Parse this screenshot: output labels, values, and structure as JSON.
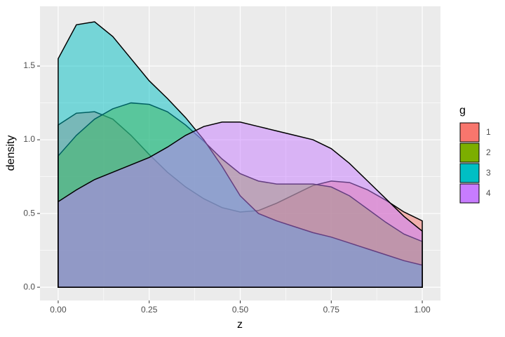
{
  "chart_data": {
    "type": "area",
    "x_label": "z",
    "y_label": "density",
    "legend_title": "g",
    "legend": "right",
    "grid": true,
    "opacity": 0.5,
    "x": [
      0,
      0.05,
      0.1,
      0.15,
      0.2,
      0.25,
      0.3,
      0.35,
      0.4,
      0.45,
      0.5,
      0.55,
      0.6,
      0.65,
      0.7,
      0.75,
      0.8,
      0.85,
      0.9,
      0.95,
      1.0
    ],
    "series": [
      {
        "name": "1",
        "color": "#F8766D",
        "values": [
          1.1,
          1.18,
          1.19,
          1.14,
          1.03,
          0.9,
          0.78,
          0.68,
          0.6,
          0.54,
          0.51,
          0.52,
          0.57,
          0.63,
          0.69,
          0.72,
          0.71,
          0.66,
          0.59,
          0.51,
          0.45
        ]
      },
      {
        "name": "2",
        "color": "#7CAE00",
        "values": [
          0.89,
          1.03,
          1.14,
          1.21,
          1.25,
          1.24,
          1.19,
          1.1,
          0.99,
          0.87,
          0.77,
          0.72,
          0.7,
          0.7,
          0.7,
          0.68,
          0.62,
          0.53,
          0.44,
          0.36,
          0.31
        ]
      },
      {
        "name": "3",
        "color": "#00BFC4",
        "values": [
          1.55,
          1.78,
          1.8,
          1.7,
          1.55,
          1.4,
          1.28,
          1.15,
          1.0,
          0.82,
          0.62,
          0.5,
          0.45,
          0.41,
          0.37,
          0.34,
          0.3,
          0.26,
          0.22,
          0.18,
          0.15
        ]
      },
      {
        "name": "4",
        "color": "#C77CFF",
        "values": [
          0.58,
          0.66,
          0.73,
          0.78,
          0.83,
          0.88,
          0.95,
          1.03,
          1.09,
          1.12,
          1.12,
          1.09,
          1.06,
          1.03,
          1.0,
          0.94,
          0.84,
          0.72,
          0.6,
          0.48,
          0.38
        ]
      }
    ],
    "xlim": [
      -0.05,
      1.05
    ],
    "xticks": [
      {
        "value": 0,
        "label": "0.00"
      },
      {
        "value": 0.25,
        "label": "0.25"
      },
      {
        "value": 0.5,
        "label": "0.50"
      },
      {
        "value": 0.75,
        "label": "0.75"
      },
      {
        "value": 1,
        "label": "1.00"
      }
    ],
    "ylim": [
      -0.09,
      1.905
    ],
    "yticks": [
      {
        "value": 0,
        "label": "0.0"
      },
      {
        "value": 0.5,
        "label": "0.5"
      },
      {
        "value": 1,
        "label": "1.0"
      },
      {
        "value": 1.5,
        "label": "1.5"
      }
    ]
  }
}
